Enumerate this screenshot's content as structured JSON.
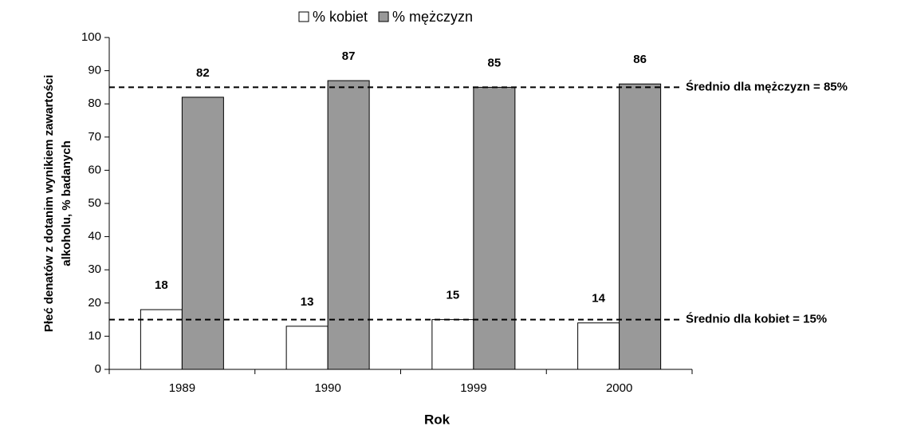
{
  "chart_data": {
    "type": "bar",
    "categories": [
      "1989",
      "1990",
      "1999",
      "2000"
    ],
    "series": [
      {
        "name": "% kobiet",
        "color": "#ffffff",
        "values": [
          18,
          13,
          15,
          14
        ]
      },
      {
        "name": "% mężczyzn",
        "color": "#999999",
        "values": [
          82,
          87,
          85,
          86
        ]
      }
    ],
    "ylim": [
      0,
      100
    ],
    "yticks": [
      0,
      10,
      20,
      30,
      40,
      50,
      60,
      70,
      80,
      90,
      100
    ],
    "xlabel": "Rok",
    "ylabel": [
      "Płeć denatów z dotanim wynikiem zawartości",
      "alkoholu, % badanych"
    ],
    "reference_lines": [
      {
        "value": 85,
        "label": "Średnio dla mężczyzn = 85%"
      },
      {
        "value": 15,
        "label": "Średnio dla kobiet = 15%"
      }
    ],
    "legend": "top"
  }
}
